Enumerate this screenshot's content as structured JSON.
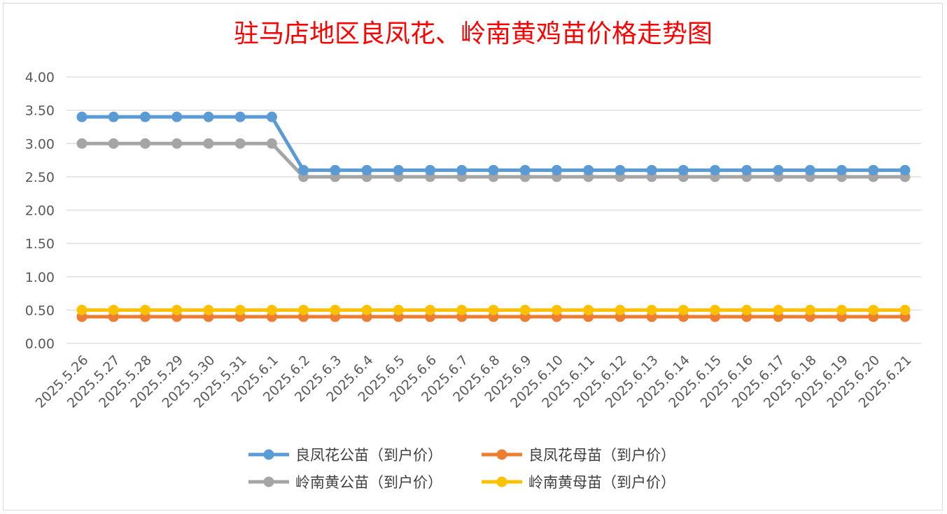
{
  "chart_data": {
    "type": "line",
    "title": "驻马店地区良凤花、岭南黄鸡苗价格走势图",
    "xlabel": "",
    "ylabel": "",
    "ylim": [
      0,
      4
    ],
    "ytick_labels": [
      "0.00",
      "0.50",
      "1.00",
      "1.50",
      "2.00",
      "2.50",
      "3.00",
      "3.50",
      "4.00"
    ],
    "yticks": [
      0,
      0.5,
      1.0,
      1.5,
      2.0,
      2.5,
      3.0,
      3.5,
      4.0
    ],
    "grid": true,
    "legend_position": "bottom",
    "categories": [
      "2025.5.26",
      "2025.5.27",
      "2025.5.28",
      "2025.5.29",
      "2025.5.30",
      "2025.5.31",
      "2025.6.1",
      "2025.6.2",
      "2025.6.3",
      "2025.6.4",
      "2025.6.5",
      "2025.6.6",
      "2025.6.7",
      "2025.6.8",
      "2025.6.9",
      "2025.6.10",
      "2025.6.11",
      "2025.6.12",
      "2025.6.13",
      "2025.6.14",
      "2025.6.15",
      "2025.6.16",
      "2025.6.17",
      "2025.6.18",
      "2025.6.19",
      "2025.6.20",
      "2025.6.21"
    ],
    "series": [
      {
        "name": "良凤花公苗（到户价）",
        "color": "#5b9bd5",
        "values": [
          3.4,
          3.4,
          3.4,
          3.4,
          3.4,
          3.4,
          3.4,
          2.6,
          2.6,
          2.6,
          2.6,
          2.6,
          2.6,
          2.6,
          2.6,
          2.6,
          2.6,
          2.6,
          2.6,
          2.6,
          2.6,
          2.6,
          2.6,
          2.6,
          2.6,
          2.6,
          2.6
        ]
      },
      {
        "name": "良凤花母苗（到户价）",
        "color": "#ed7d31",
        "values": [
          0.4,
          0.4,
          0.4,
          0.4,
          0.4,
          0.4,
          0.4,
          0.4,
          0.4,
          0.4,
          0.4,
          0.4,
          0.4,
          0.4,
          0.4,
          0.4,
          0.4,
          0.4,
          0.4,
          0.4,
          0.4,
          0.4,
          0.4,
          0.4,
          0.4,
          0.4,
          0.4
        ]
      },
      {
        "name": "岭南黄公苗（到户价）",
        "color": "#a5a5a5",
        "values": [
          3.0,
          3.0,
          3.0,
          3.0,
          3.0,
          3.0,
          3.0,
          2.5,
          2.5,
          2.5,
          2.5,
          2.5,
          2.5,
          2.5,
          2.5,
          2.5,
          2.5,
          2.5,
          2.5,
          2.5,
          2.5,
          2.5,
          2.5,
          2.5,
          2.5,
          2.5,
          2.5
        ]
      },
      {
        "name": "岭南黄母苗（到户价）",
        "color": "#ffc000",
        "values": [
          0.5,
          0.5,
          0.5,
          0.5,
          0.5,
          0.5,
          0.5,
          0.5,
          0.5,
          0.5,
          0.5,
          0.5,
          0.5,
          0.5,
          0.5,
          0.5,
          0.5,
          0.5,
          0.5,
          0.5,
          0.5,
          0.5,
          0.5,
          0.5,
          0.5,
          0.5,
          0.5
        ]
      }
    ]
  }
}
